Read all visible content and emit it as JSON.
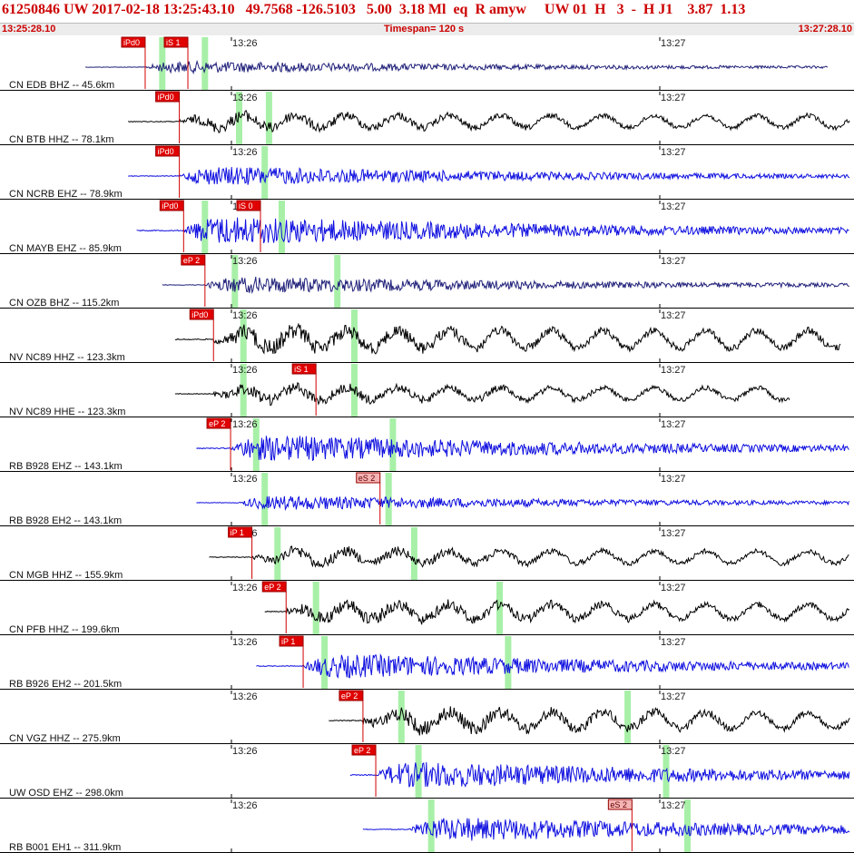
{
  "header": {
    "title": "61250846 UW 2017-02-18 13:25:43.10   49.7568 -126.5103   5.00  3.18 Ml  eq  R amyw     UW 01  H   3  -  H J1    3.87  1.13",
    "time_start": "13:25:28.10",
    "timespan": "Timespan= 120 s",
    "time_end": "13:27:28.10"
  },
  "time_labels": [
    "13:26",
    "13:27"
  ],
  "colors": {
    "blue": "#1010e0",
    "navy": "#20207a",
    "black": "#000000",
    "pick": "#e00000",
    "pick_light": "#f4b4b4",
    "window": "#a8f0a8"
  },
  "traces": [
    {
      "label": "CN EDB BHZ -- 45.6km",
      "color": "navy",
      "amp": 0.25,
      "start": 0.1,
      "end": 0.97,
      "onset": 0.17,
      "picks": [
        {
          "text": "iPd0",
          "t": 0.17,
          "light": false
        },
        {
          "text": "iS 1",
          "t": 0.22,
          "light": false
        }
      ],
      "windows": [
        0.19,
        0.24
      ]
    },
    {
      "label": "CN BTB HHZ -- 78.1km",
      "color": "black",
      "amp": 0.45,
      "start": 0.15,
      "end": 0.995,
      "onset": 0.21,
      "picks": [
        {
          "text": "iPd0",
          "t": 0.21,
          "light": false
        }
      ],
      "windows": [
        0.28,
        0.315
      ]
    },
    {
      "label": "CN NCRB EHZ -- 78.9km",
      "color": "blue",
      "amp": 0.4,
      "start": 0.15,
      "end": 0.995,
      "onset": 0.21,
      "picks": [
        {
          "text": "iPd0",
          "t": 0.21,
          "light": false
        }
      ],
      "windows": [
        0.31
      ]
    },
    {
      "label": "CN MAYB EHZ -- 85.9km",
      "color": "blue",
      "amp": 0.6,
      "start": 0.16,
      "end": 0.995,
      "onset": 0.215,
      "picks": [
        {
          "text": "iPd0",
          "t": 0.215,
          "light": false
        },
        {
          "text": "iS 0",
          "t": 0.305,
          "light": false
        }
      ],
      "windows": [
        0.24,
        0.33
      ]
    },
    {
      "label": "CN OZB BHZ -- 115.2km",
      "color": "navy",
      "amp": 0.35,
      "start": 0.19,
      "end": 0.995,
      "onset": 0.24,
      "picks": [
        {
          "text": "eP 2",
          "t": 0.24,
          "light": false
        }
      ],
      "windows": [
        0.275,
        0.395
      ]
    },
    {
      "label": "NV NC89 HHZ -- 123.3km",
      "color": "black",
      "amp": 0.65,
      "start": 0.205,
      "end": 0.985,
      "onset": 0.25,
      "picks": [
        {
          "text": "iPd0",
          "t": 0.25,
          "light": false
        }
      ],
      "windows": [
        0.285,
        0.415
      ]
    },
    {
      "label": "NV NC89 HHE -- 123.3km",
      "color": "black",
      "amp": 0.45,
      "start": 0.205,
      "end": 0.925,
      "onset": 0.25,
      "picks": [
        {
          "text": "iS 1",
          "t": 0.37,
          "light": false
        }
      ],
      "windows": [
        0.285,
        0.415
      ]
    },
    {
      "label": "RB B928 EHZ -- 143.1km",
      "color": "blue",
      "amp": 0.55,
      "start": 0.23,
      "end": 0.995,
      "onset": 0.27,
      "picks": [
        {
          "text": "eP 2",
          "t": 0.27,
          "light": false
        }
      ],
      "windows": [
        0.3,
        0.46
      ]
    },
    {
      "label": "RB B928 EH2 -- 143.1km",
      "color": "blue",
      "amp": 0.3,
      "start": 0.23,
      "end": 0.995,
      "onset": 0.28,
      "picks": [
        {
          "text": "eS 2",
          "t": 0.445,
          "light": true
        }
      ],
      "windows": [
        0.31,
        0.455
      ]
    },
    {
      "label": "CN MGB HHZ -- 155.9km",
      "color": "black",
      "amp": 0.45,
      "start": 0.245,
      "end": 0.995,
      "onset": 0.295,
      "picks": [
        {
          "text": "iP 1",
          "t": 0.295,
          "light": false
        }
      ],
      "windows": [
        0.325,
        0.485
      ]
    },
    {
      "label": "CN PFB HHZ -- 199.6km",
      "color": "black",
      "amp": 0.55,
      "start": 0.31,
      "end": 0.995,
      "onset": 0.335,
      "picks": [
        {
          "text": "eP 2",
          "t": 0.335,
          "light": false
        }
      ],
      "windows": [
        0.37,
        0.585
      ]
    },
    {
      "label": "RB B926 EH2 -- 201.5km",
      "color": "blue",
      "amp": 0.5,
      "start": 0.3,
      "end": 0.995,
      "onset": 0.355,
      "picks": [
        {
          "text": "iP 1",
          "t": 0.355,
          "light": false
        }
      ],
      "windows": [
        0.38,
        0.595
      ]
    },
    {
      "label": "CN VGZ HHZ -- 275.9km",
      "color": "black",
      "amp": 0.6,
      "start": 0.385,
      "end": 0.995,
      "onset": 0.425,
      "picks": [
        {
          "text": "eP 2",
          "t": 0.425,
          "light": false
        }
      ],
      "windows": [
        0.47,
        0.735
      ]
    },
    {
      "label": "UW OSD EHZ -- 298.0km",
      "color": "blue",
      "amp": 0.55,
      "start": 0.41,
      "end": 0.995,
      "onset": 0.44,
      "picks": [
        {
          "text": "eP 2",
          "t": 0.44,
          "light": false
        }
      ],
      "windows": [
        0.49,
        0.78
      ]
    },
    {
      "label": "RB B001 EH1 -- 311.9km",
      "color": "blue",
      "amp": 0.5,
      "start": 0.425,
      "end": 0.995,
      "onset": 0.48,
      "picks": [
        {
          "text": "eS 2",
          "t": 0.74,
          "light": true
        }
      ],
      "windows": [
        0.505,
        0.805
      ]
    }
  ]
}
